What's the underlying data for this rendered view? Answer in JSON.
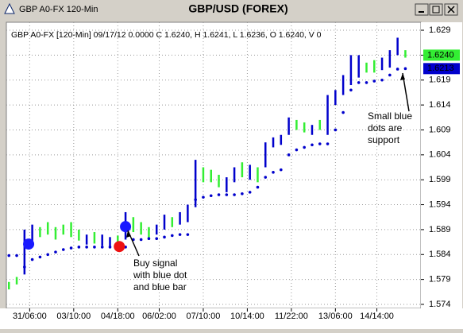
{
  "window_title": "GBP A0-FX 120-Min",
  "chart_data": {
    "type": "ohlc",
    "title": "GBP/USD (FOREX)",
    "subtitle": "GBP A0-FX [120-Min] 09/17/12 0.0000 C 1.6240, H 1.6241, L 1.6236, O 1.6240, V 0",
    "xlim": [
      0,
      160
    ],
    "xticks": [
      {
        "value": 9,
        "label": "31/06:00"
      },
      {
        "value": 26,
        "label": "03/10:00"
      },
      {
        "value": 43,
        "label": "04/18:00"
      },
      {
        "value": 59,
        "label": "06/02:00"
      },
      {
        "value": 76,
        "label": "07/10:00"
      },
      {
        "value": 93,
        "label": "10/14:00"
      },
      {
        "value": 110,
        "label": "11/22:00"
      },
      {
        "value": 127,
        "label": "13/06:00"
      },
      {
        "value": 143,
        "label": "14/14:00"
      }
    ],
    "ylim": [
      1.5732,
      1.6306
    ],
    "yticks": [
      1.629,
      1.624,
      1.619,
      1.614,
      1.609,
      1.604,
      1.599,
      1.594,
      1.589,
      1.584,
      1.579,
      1.574
    ],
    "grid": true,
    "bars": {
      "x": [
        1,
        4,
        7,
        10,
        13,
        16,
        19,
        22,
        25,
        28,
        31,
        34,
        37,
        40,
        43,
        46,
        49,
        52,
        55,
        58,
        61,
        64,
        67,
        70,
        73,
        76,
        79,
        82,
        85,
        88,
        91,
        94,
        97,
        100,
        103,
        106,
        109,
        112,
        115,
        118,
        121,
        124,
        127,
        130,
        133,
        136,
        139,
        142,
        145,
        148,
        151,
        154
      ],
      "high": [
        1.5785,
        1.5795,
        1.589,
        1.59,
        1.5895,
        1.5905,
        1.5895,
        1.59,
        1.5905,
        1.589,
        1.588,
        1.5885,
        1.588,
        1.5875,
        1.5878,
        1.5925,
        1.5915,
        1.5905,
        1.5895,
        1.59,
        1.592,
        1.5915,
        1.5925,
        1.594,
        1.603,
        1.6015,
        1.601,
        1.6,
        1.5995,
        1.6015,
        1.6025,
        1.602,
        1.6015,
        1.6065,
        1.6075,
        1.608,
        1.6115,
        1.611,
        1.6105,
        1.61,
        1.611,
        1.616,
        1.617,
        1.62,
        1.624,
        1.624,
        1.6225,
        1.623,
        1.6235,
        1.625,
        1.6275,
        1.625
      ],
      "low": [
        1.577,
        1.578,
        1.58,
        1.586,
        1.5875,
        1.588,
        1.587,
        1.588,
        1.5875,
        1.5868,
        1.586,
        1.5862,
        1.5858,
        1.5855,
        1.5852,
        1.587,
        1.5885,
        1.588,
        1.587,
        1.588,
        1.589,
        1.5895,
        1.59,
        1.5905,
        1.5935,
        1.5985,
        1.5985,
        1.5975,
        1.5965,
        1.5985,
        1.5995,
        1.599,
        1.5985,
        1.6015,
        1.6055,
        1.606,
        1.608,
        1.609,
        1.6085,
        1.608,
        1.609,
        1.608,
        1.614,
        1.616,
        1.618,
        1.6195,
        1.6205,
        1.6205,
        1.621,
        1.6215,
        1.624,
        1.6235
      ],
      "colors": [
        "#33ee33",
        "#33ee33",
        "#0000cc",
        "#0000cc",
        "#33ee33",
        "#33ee33",
        "#33ee33",
        "#33ee33",
        "#33ee33",
        "#33ee33",
        "#0000cc",
        "#33ee33",
        "#0000cc",
        "#0000cc",
        "#33ee33",
        "#0000cc",
        "#33ee33",
        "#33ee33",
        "#33ee33",
        "#0000cc",
        "#0000cc",
        "#33ee33",
        "#0000cc",
        "#0000cc",
        "#0000cc",
        "#33ee33",
        "#33ee33",
        "#33ee33",
        "#0000cc",
        "#0000cc",
        "#33ee33",
        "#0000cc",
        "#33ee33",
        "#0000cc",
        "#0000cc",
        "#0000cc",
        "#0000cc",
        "#33ee33",
        "#33ee33",
        "#0000cc",
        "#33ee33",
        "#0000cc",
        "#0000cc",
        "#0000cc",
        "#0000cc",
        "#0000cc",
        "#33ee33",
        "#33ee33",
        "#0000cc",
        "#0000cc",
        "#0000cc",
        "#33ee33"
      ]
    },
    "support": {
      "color": "#0000cc",
      "values": [
        1.5838,
        1.5838,
        1.5815,
        1.583,
        1.5835,
        1.584,
        1.5845,
        1.585,
        1.5853,
        1.5855,
        1.5855,
        1.5855,
        1.5855,
        1.5855,
        1.5855,
        1.5855,
        1.587,
        1.587,
        1.5872,
        1.5872,
        1.5875,
        1.5878,
        1.588,
        1.588,
        1.595,
        1.5955,
        1.5958,
        1.596,
        1.596,
        1.596,
        1.5962,
        1.5965,
        1.5975,
        1.5995,
        1.6005,
        1.601,
        1.604,
        1.605,
        1.6055,
        1.606,
        1.6062,
        1.6062,
        1.609,
        1.6125,
        1.617,
        1.6185,
        1.6185,
        1.6188,
        1.619,
        1.62,
        1.6212,
        1.6213
      ]
    },
    "signals": {
      "x": [
        8.6,
        43.6,
        46
      ],
      "values": [
        1.5861,
        1.5856,
        1.5896
      ],
      "colors": [
        "#1a1aff",
        "#ee1111",
        "#1a1aff"
      ]
    },
    "price_labels": [
      {
        "value": 1.624,
        "label": "1.6240",
        "color": "#33ee33"
      },
      {
        "value": 1.6213,
        "label": "1.6213",
        "color": "#0000cc"
      }
    ],
    "annotations": [
      [
        "Buy signal",
        "with blue dot",
        "and blue bar"
      ],
      [
        "Small blue",
        "dots are",
        "support"
      ]
    ]
  }
}
